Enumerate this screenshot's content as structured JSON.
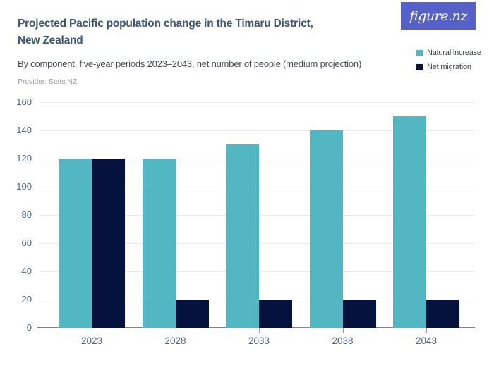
{
  "header": {
    "title_line1": "Projected Pacific population change in the Timaru District,",
    "title_line2": "New Zealand",
    "subtitle": "By component, five-year periods 2023–2043, net number of people (medium projection)",
    "provider": "Provider: Stats NZ"
  },
  "logo": {
    "text": "figure.nz",
    "background_color": "#5560c8"
  },
  "legend": {
    "position": "top-right",
    "items": [
      {
        "label": "Natural increase",
        "color": "#52b7c3"
      },
      {
        "label": "Net migration",
        "color": "#05123e"
      }
    ]
  },
  "chart_data": {
    "type": "bar",
    "title": "Projected Pacific population change in the Timaru District, New Zealand",
    "subtitle": "By component, five-year periods 2023–2043, net number of people (medium projection)",
    "provider": "Provider: Stats NZ",
    "categories": [
      "2023",
      "2028",
      "2033",
      "2038",
      "2043"
    ],
    "series": [
      {
        "name": "Natural increase",
        "color": "#52b7c3",
        "values": [
          120,
          120,
          130,
          140,
          150
        ]
      },
      {
        "name": "Net migration",
        "color": "#05123e",
        "values": [
          120,
          20,
          20,
          20,
          20
        ]
      }
    ],
    "ylim": [
      0,
      160
    ],
    "yticks": [
      0,
      20,
      40,
      60,
      80,
      100,
      120,
      140,
      160
    ],
    "grid": true,
    "legend_position": "top-right",
    "colors": {
      "gridline": "#e9e9e9",
      "axis_line": "#848484",
      "tick": "#9a9a9a",
      "axis_label": "#4e6480",
      "title": "#3b5775"
    }
  }
}
